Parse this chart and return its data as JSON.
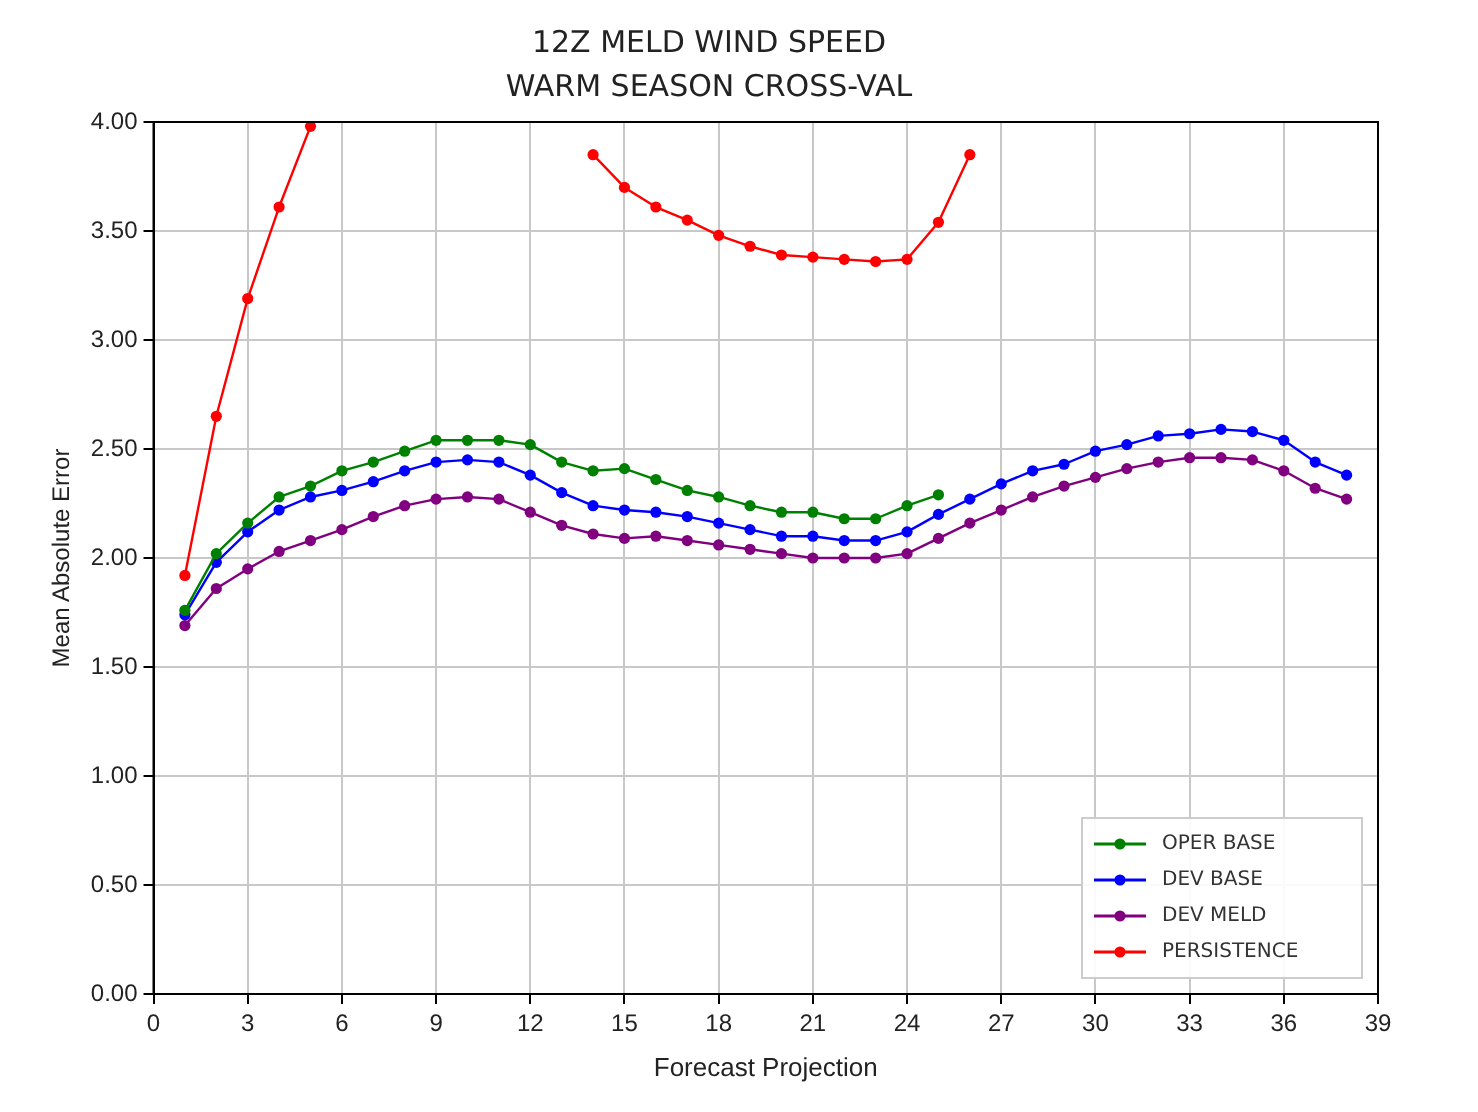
{
  "chart_data": {
    "type": "line",
    "title": "12Z MELD WIND SPEED",
    "subtitle": "WARM SEASON CROSS-VAL",
    "xlabel": "Forecast Projection",
    "ylabel": "Mean Absolute Error",
    "x": [
      1,
      2,
      3,
      4,
      5,
      6,
      7,
      8,
      9,
      10,
      11,
      12,
      13,
      14,
      15,
      16,
      17,
      18,
      19,
      20,
      21,
      22,
      23,
      24,
      25,
      26,
      27,
      28,
      29,
      30,
      31,
      32,
      33,
      34,
      35,
      36,
      37,
      38
    ],
    "series": [
      {
        "name": "OPER BASE",
        "color": "#008000",
        "x": [
          1,
          2,
          3,
          4,
          5,
          6,
          7,
          8,
          9,
          10,
          11,
          12,
          13,
          14,
          15,
          16,
          17,
          18,
          19,
          20,
          21,
          22,
          23,
          24,
          25
        ],
        "values": [
          1.76,
          2.02,
          2.16,
          2.28,
          2.33,
          2.4,
          2.44,
          2.49,
          2.54,
          2.54,
          2.54,
          2.52,
          2.44,
          2.4,
          2.41,
          2.36,
          2.31,
          2.28,
          2.24,
          2.21,
          2.21,
          2.18,
          2.18,
          2.24,
          2.29
        ]
      },
      {
        "name": "DEV BASE",
        "color": "#0000ff",
        "values": [
          1.74,
          1.98,
          2.12,
          2.22,
          2.28,
          2.31,
          2.35,
          2.4,
          2.44,
          2.45,
          2.44,
          2.38,
          2.3,
          2.24,
          2.22,
          2.21,
          2.19,
          2.16,
          2.13,
          2.1,
          2.1,
          2.08,
          2.08,
          2.12,
          2.2,
          2.27,
          2.34,
          2.4,
          2.43,
          2.49,
          2.52,
          2.56,
          2.57,
          2.59,
          2.58,
          2.54,
          2.44,
          2.38
        ]
      },
      {
        "name": "DEV MELD",
        "color": "#800080",
        "values": [
          1.69,
          1.86,
          1.95,
          2.03,
          2.08,
          2.13,
          2.19,
          2.24,
          2.27,
          2.28,
          2.27,
          2.21,
          2.15,
          2.11,
          2.09,
          2.1,
          2.08,
          2.06,
          2.04,
          2.02,
          2.0,
          2.0,
          2.0,
          2.02,
          2.09,
          2.16,
          2.22,
          2.28,
          2.33,
          2.37,
          2.41,
          2.44,
          2.46,
          2.46,
          2.45,
          2.4,
          2.32,
          2.27
        ]
      },
      {
        "name": "PERSISTENCE",
        "color": "#ff0000",
        "x": [
          1,
          2,
          3,
          4,
          5,
          6,
          7,
          8,
          9,
          10,
          11,
          12,
          13,
          14,
          15,
          16,
          17,
          18,
          19,
          20,
          21,
          22,
          23,
          24,
          25,
          26
        ],
        "values": [
          1.92,
          2.65,
          3.19,
          3.61,
          3.98,
          null,
          null,
          null,
          null,
          null,
          null,
          null,
          null,
          3.85,
          3.7,
          3.61,
          3.55,
          3.48,
          3.43,
          3.39,
          3.38,
          3.37,
          3.36,
          3.37,
          3.54,
          3.85
        ]
      }
    ],
    "xlim": [
      0,
      39
    ],
    "xticks": [
      0,
      3,
      6,
      9,
      12,
      15,
      18,
      21,
      24,
      27,
      30,
      33,
      36,
      39
    ],
    "ylim": [
      0,
      4
    ],
    "yticks": [
      {
        "value": 0,
        "label": "0.00"
      },
      {
        "value": 0.5,
        "label": "0.50"
      },
      {
        "value": 1,
        "label": "1.00"
      },
      {
        "value": 1.5,
        "label": "1.50"
      },
      {
        "value": 2,
        "label": "2.00"
      },
      {
        "value": 2.5,
        "label": "2.50"
      },
      {
        "value": 3,
        "label": "3.00"
      },
      {
        "value": 3.5,
        "label": "3.50"
      },
      {
        "value": 4,
        "label": "4.00"
      }
    ],
    "grid": true,
    "legend": "bottom right",
    "marker": "circle",
    "line_style": "solid"
  }
}
